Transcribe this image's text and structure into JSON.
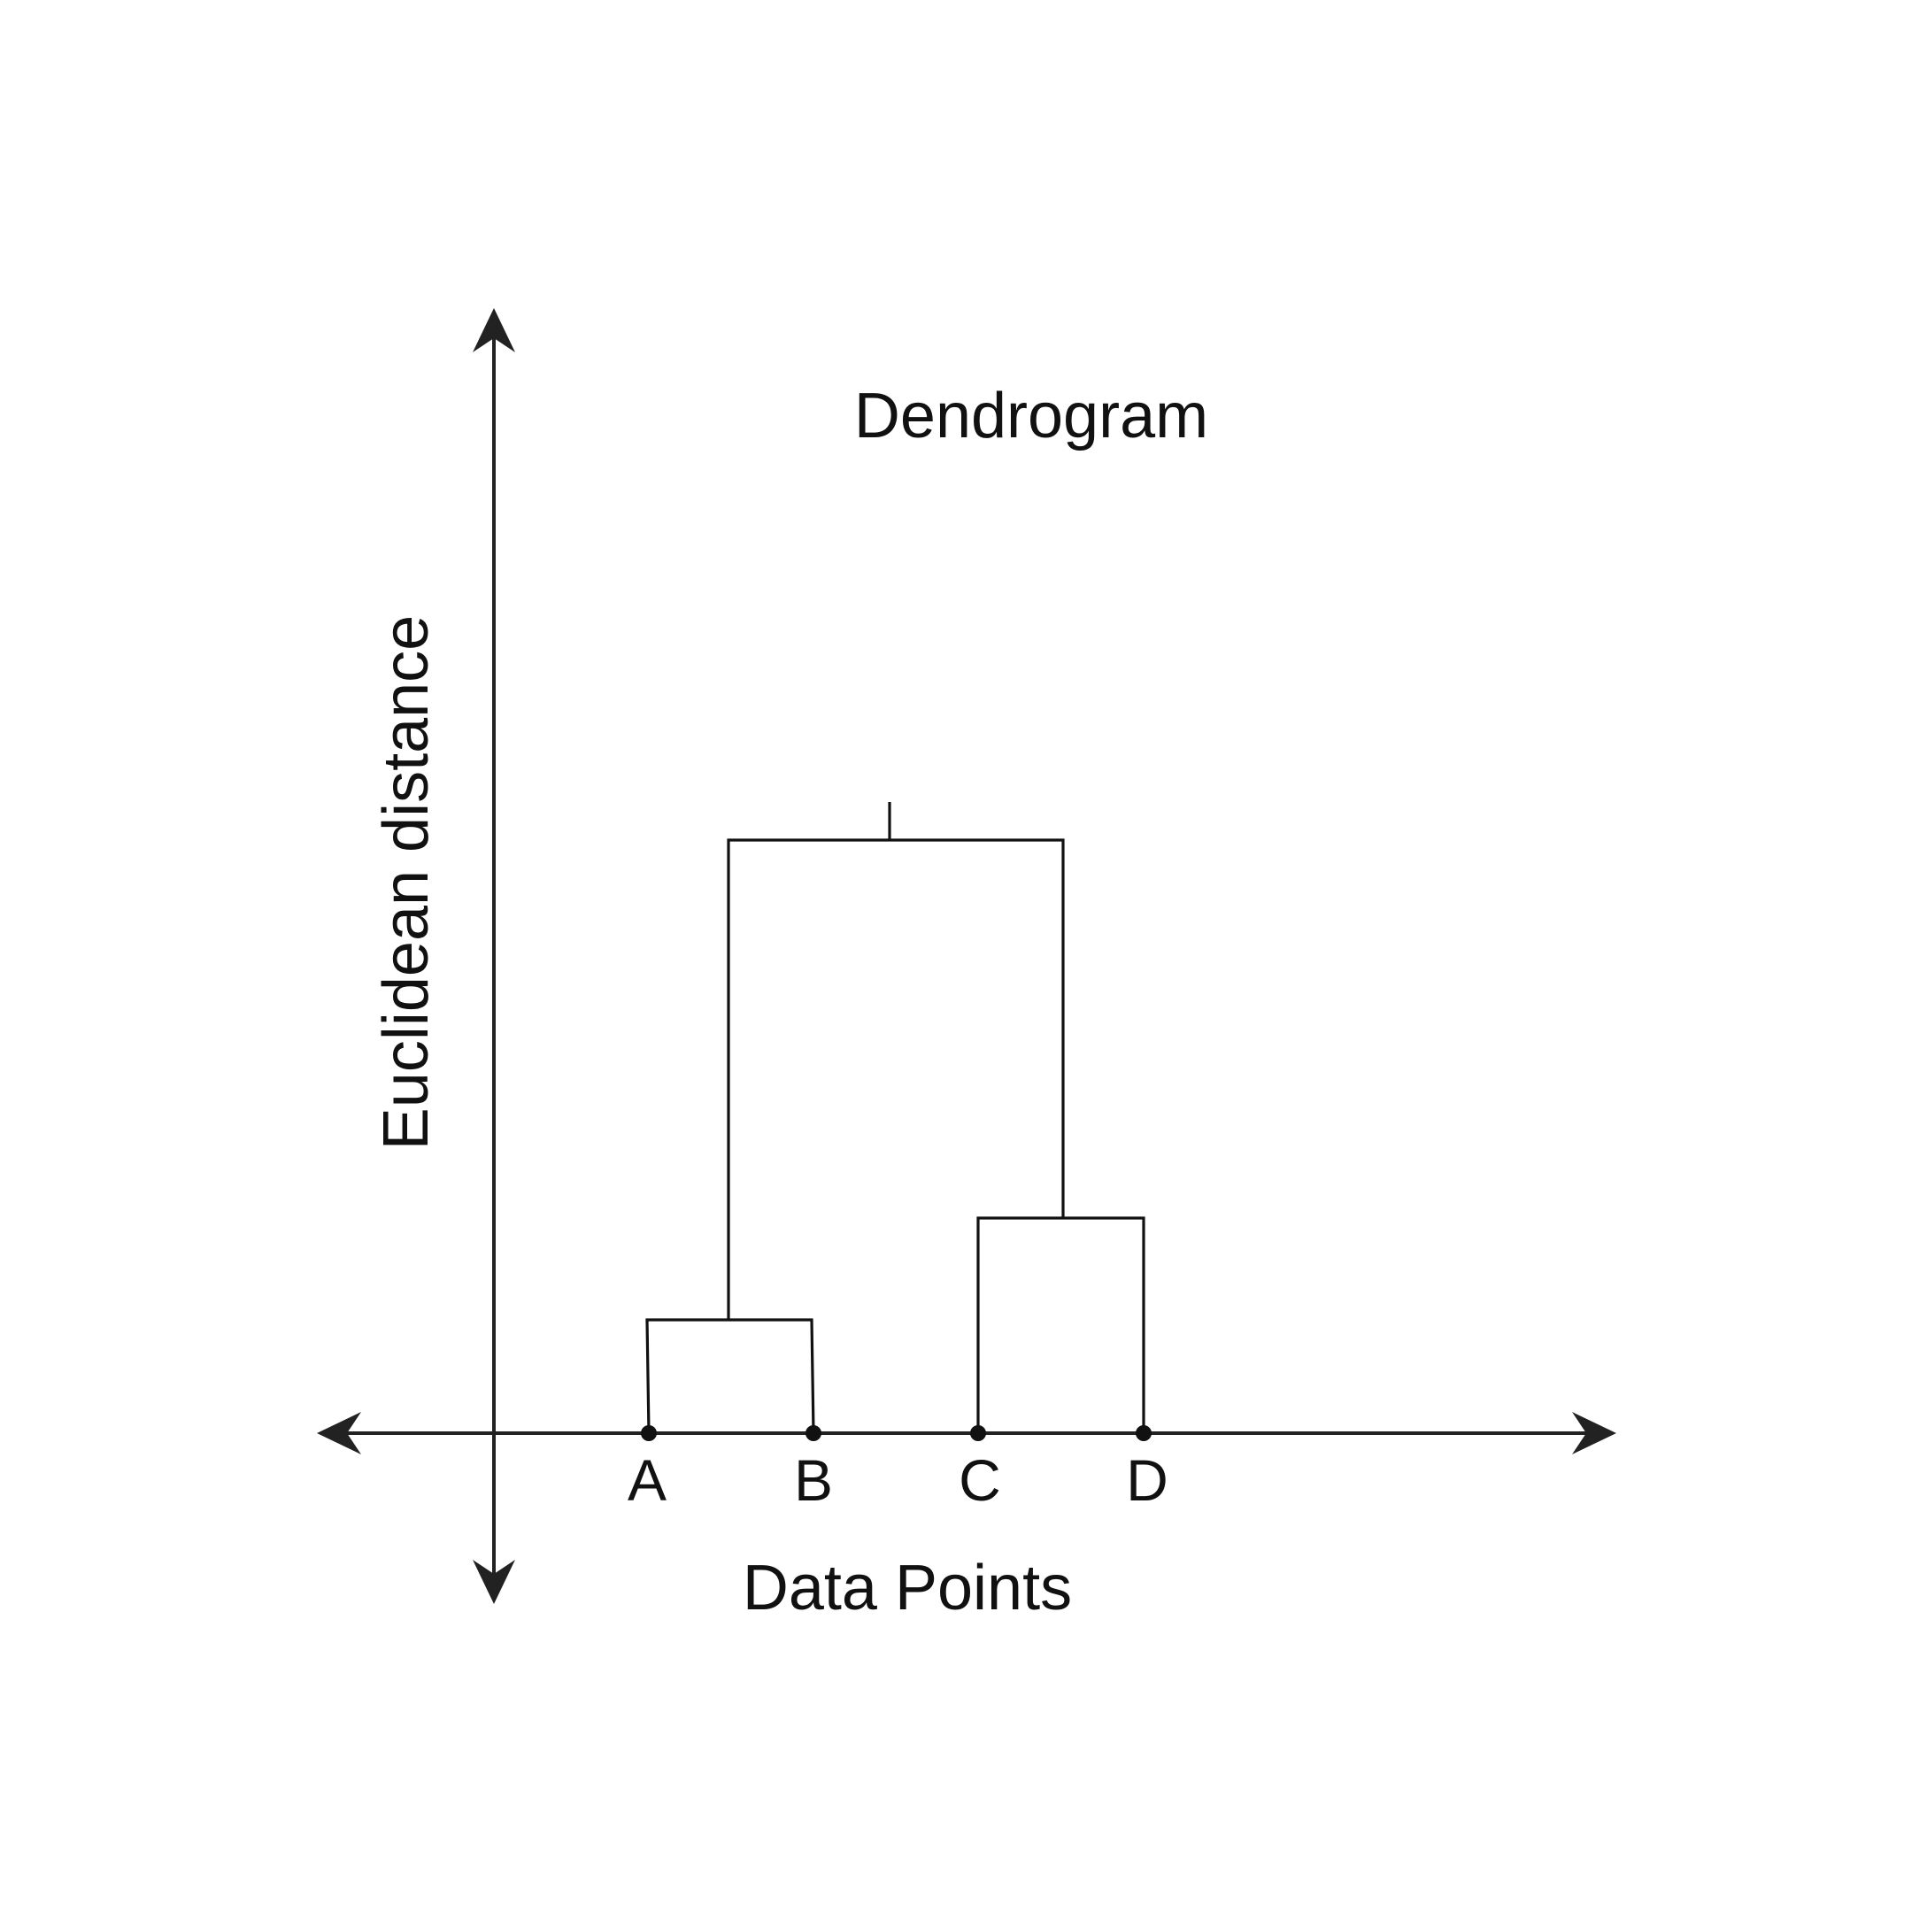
{
  "title": "Dendrogram",
  "x_axis_label": "Data Points",
  "y_axis_label": "Euclidean distance",
  "colors": {
    "background": "#ffffff",
    "lines": "#111111",
    "axes": "#222222"
  },
  "leaves": [
    {
      "label": "A"
    },
    {
      "label": "B"
    },
    {
      "label": "C"
    },
    {
      "label": "D"
    }
  ]
}
